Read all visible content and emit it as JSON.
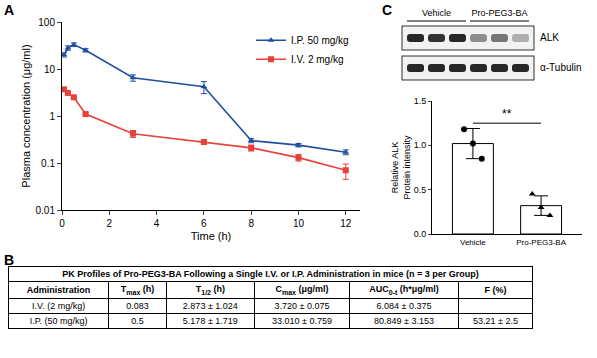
{
  "panel_labels": [
    "A",
    "B",
    "C"
  ],
  "chart_data": [
    {
      "type": "line",
      "xlabel": "Time (h)",
      "ylabel": "Plasma concentration (μg/ml)",
      "log": "y",
      "grid": false,
      "legend": "upper right",
      "xlim": [
        0,
        12.6
      ],
      "xticks": [
        0,
        2,
        4,
        6,
        8,
        10,
        12
      ],
      "ylim": [
        0.01,
        100
      ],
      "yticks": [
        0.01,
        0.1,
        1,
        10,
        100
      ],
      "x": [
        0.083,
        0.25,
        0.5,
        1,
        3,
        6,
        8,
        10,
        12
      ],
      "series": [
        {
          "name": "I.P. 50 mg/kg",
          "color": "#1f4fa0",
          "marker": "triangle",
          "values": [
            20,
            28,
            33,
            25,
            6.5,
            4.2,
            0.3,
            0.24,
            0.17
          ],
          "errors": [
            2,
            3,
            3,
            2,
            1,
            1.2,
            0.03,
            0.02,
            0.02
          ]
        },
        {
          "name": "I.V. 2 mg/kg",
          "color": "#e8413a",
          "marker": "square",
          "values": [
            3.7,
            3.1,
            2.5,
            1.1,
            0.42,
            0.28,
            0.21,
            0.13,
            0.07
          ],
          "errors": [
            0.3,
            0.2,
            0.15,
            0.08,
            0.07,
            0.03,
            0.03,
            0.02,
            0.025
          ]
        }
      ]
    },
    {
      "type": "bar",
      "categories": [
        "Vehicle",
        "Pro-PEG3-BA"
      ],
      "values": [
        1.02,
        0.32
      ],
      "errors": [
        0.17,
        0.11
      ],
      "color": "#ffffff",
      "ylabel": "Relative ALK\nProtein intensity",
      "ylim": [
        0,
        1.5
      ],
      "yticks": [
        {
          "value": 0,
          "label": "0.0"
        },
        {
          "value": 0.5,
          "label": "0.5"
        },
        {
          "value": 1,
          "label": "1.0"
        },
        {
          "value": 1.5,
          "label": "1.5"
        }
      ],
      "points": [
        {
          "category": "Vehicle",
          "marker": "circle",
          "values": [
            1.18,
            1.02,
            0.85
          ]
        },
        {
          "category": "Pro-PEG3-BA",
          "marker": "triangle",
          "values": [
            0.45,
            0.3,
            0.21
          ]
        }
      ],
      "significance": {
        "text": "**",
        "between": [
          "Vehicle",
          "Pro-PEG3-BA"
        ]
      }
    }
  ],
  "table": {
    "title": "PK Profiles of Pro-PEG3-BA Following a Single I.V. or I.P. Administration in mice (n = 3 per Group)",
    "header": [
      "Administration",
      {
        "text": "T",
        "sub": "max",
        "after": " (h)"
      },
      {
        "text": "T",
        "sub": "1/2",
        "after": " (h)"
      },
      {
        "text": "C",
        "sub": "max",
        "after": " (μg/ml)"
      },
      {
        "text": "AUC",
        "sub": "0-t",
        "after": " (h*μg/ml)"
      },
      "F (%)"
    ],
    "rows": [
      [
        "I.V. (2 mg/kg)",
        "0.083",
        "2.873 ± 1.024",
        "3.720 ± 0.075",
        "6.084 ± 0.375",
        null
      ],
      [
        "I.P. (50 mg/kg)",
        "0.5",
        "5.178 ± 1.719",
        "33.010 ± 0.759",
        "80.849 ± 3.153",
        "53.21 ± 2.5"
      ]
    ]
  },
  "blot": {
    "groups": [
      {
        "label": "Vehicle",
        "lanes": 3
      },
      {
        "label": "Pro-PEG3-BA",
        "lanes": 3
      }
    ],
    "bands": [
      "ALK",
      "α-Tubulin"
    ]
  }
}
